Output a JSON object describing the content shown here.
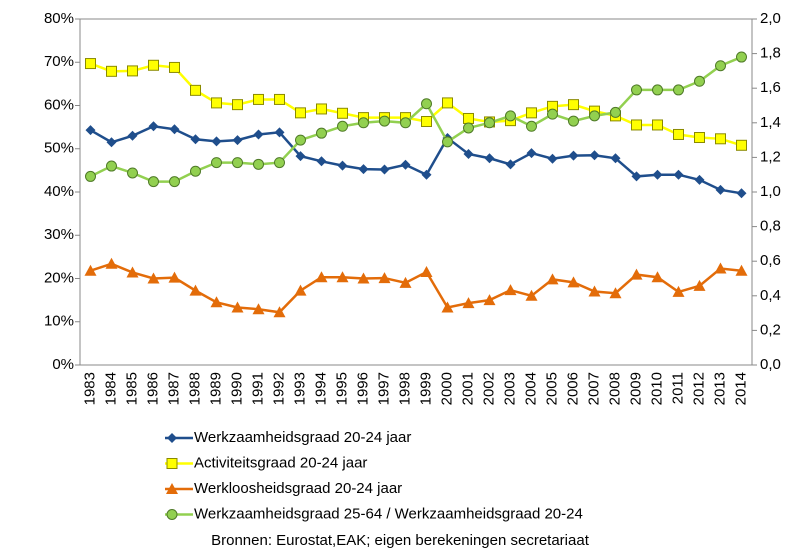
{
  "chart_data": {
    "type": "line",
    "categories": [
      "1983",
      "1984",
      "1985",
      "1986",
      "1987",
      "1988",
      "1989",
      "1990",
      "1991",
      "1992",
      "1993",
      "1994",
      "1995",
      "1996",
      "1997",
      "1998",
      "1999",
      "2000",
      "2001",
      "2002",
      "2003",
      "2004",
      "2005",
      "2006",
      "2007",
      "2008",
      "2009",
      "2010",
      "2011",
      "2012",
      "2013",
      "2014"
    ],
    "series": [
      {
        "name": "Werkzaamheidsgraad 20-24 jaar",
        "color": "#1f4e8c",
        "marker": "diamond",
        "values": [
          54.3,
          51.5,
          53,
          55.2,
          54.5,
          52.2,
          51.7,
          52,
          53.3,
          53.8,
          48.3,
          47.1,
          46.1,
          45.3,
          45.2,
          46.3,
          44,
          52.5,
          48.8,
          47.8,
          46.4,
          49,
          47.7,
          48.4,
          48.5,
          47.8,
          43.6,
          44,
          44,
          42.8,
          40.5,
          39.7
        ]
      },
      {
        "name": "Activiteitsgraad 20-24 jaar",
        "color": "#ffff00",
        "marker": "square",
        "values": [
          69.7,
          67.9,
          68,
          69.3,
          68.8,
          63.5,
          60.6,
          60.2,
          61.4,
          61.4,
          58.3,
          59.2,
          58.2,
          57.2,
          57.2,
          57.2,
          56.3,
          60.6,
          57,
          56.2,
          56.5,
          58.3,
          59.8,
          60.2,
          58.7,
          57.6,
          55.5,
          55.5,
          53.3,
          52.6,
          52.3,
          50.8
        ]
      },
      {
        "name": "Werkloosheidsgraad 20-24 jaar",
        "color": "#e36c09",
        "marker": "triangle",
        "values": [
          21.8,
          23.4,
          21.4,
          20,
          20.2,
          17.2,
          14.5,
          13.3,
          12.9,
          12.2,
          17.2,
          20.3,
          20.3,
          20,
          20.1,
          19,
          21.5,
          13.3,
          14.3,
          15,
          17.3,
          16,
          19.8,
          19.1,
          17,
          16.6,
          20.9,
          20.3,
          16.9,
          18.3,
          22.3,
          21.8
        ]
      },
      {
        "name": "Werkzaamheidsgraad 25-64 / Werkzaamheidsgraad 20-24",
        "color": "#92d050",
        "marker": "circle",
        "axis": "y2",
        "values": [
          1.09,
          1.15,
          1.11,
          1.06,
          1.06,
          1.12,
          1.17,
          1.17,
          1.16,
          1.17,
          1.3,
          1.34,
          1.38,
          1.4,
          1.41,
          1.4,
          1.51,
          1.29,
          1.37,
          1.4,
          1.44,
          1.38,
          1.45,
          1.41,
          1.44,
          1.46,
          1.59,
          1.59,
          1.59,
          1.64,
          1.73,
          1.78
        ]
      }
    ],
    "ylim": [
      0,
      80
    ],
    "yticks": [
      {
        "value": 0,
        "label": "0%"
      },
      {
        "value": 10,
        "label": "10%"
      },
      {
        "value": 20,
        "label": "20%"
      },
      {
        "value": 30,
        "label": "30%"
      },
      {
        "value": 40,
        "label": "40%"
      },
      {
        "value": 50,
        "label": "50%"
      },
      {
        "value": 60,
        "label": "60%"
      },
      {
        "value": 70,
        "label": "70%"
      },
      {
        "value": 80,
        "label": "80%"
      }
    ],
    "y2lim": [
      0,
      2
    ],
    "y2ticks": [
      {
        "value": 0,
        "label": "0,0"
      },
      {
        "value": 0.2,
        "label": "0,2"
      },
      {
        "value": 0.4,
        "label": "0,4"
      },
      {
        "value": 0.6,
        "label": "0,6"
      },
      {
        "value": 0.8,
        "label": "0,8"
      },
      {
        "value": 1,
        "label": "1,0"
      },
      {
        "value": 1.2,
        "label": "1,2"
      },
      {
        "value": 1.4,
        "label": "1,4"
      },
      {
        "value": 1.6,
        "label": "1,6"
      },
      {
        "value": 1.8,
        "label": "1,8"
      },
      {
        "value": 2,
        "label": "2,0"
      }
    ],
    "grid": false,
    "legend": "bottom",
    "source": "Bronnen: Eurostat,EAK; eigen berekeningen secretariaat"
  }
}
